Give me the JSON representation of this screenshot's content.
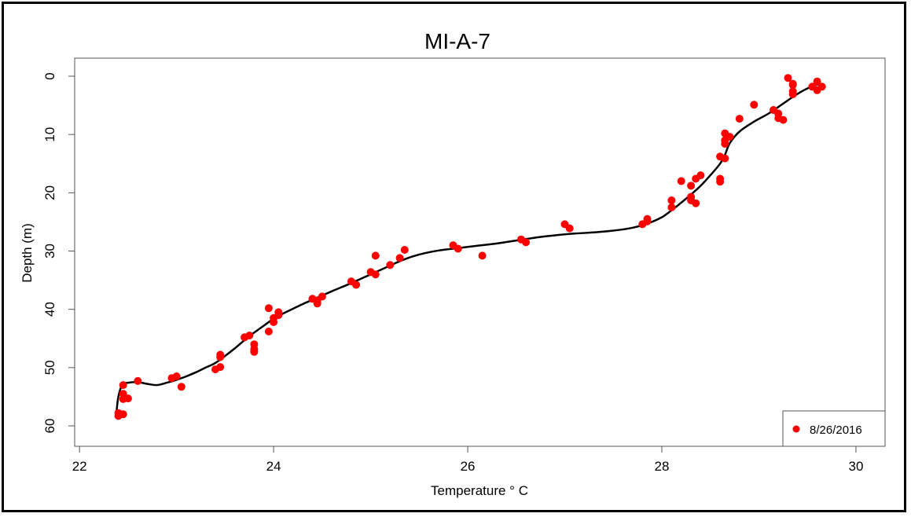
{
  "chart_data": {
    "type": "scatter",
    "title": "MI-A-7",
    "xlabel": "Temperature ° C",
    "ylabel": "Depth (m)",
    "xlim": [
      21.95,
      30.3
    ],
    "ylim": [
      0,
      63
    ],
    "y_axis_inverted": true,
    "x_ticks": [
      22,
      24,
      26,
      28,
      30
    ],
    "y_ticks": [
      0,
      10,
      20,
      30,
      40,
      50,
      60
    ],
    "grid": false,
    "legend": {
      "position": "bottom-right",
      "entries": [
        "8/26/2016"
      ]
    },
    "colors": {
      "points": "#ff0000",
      "smooth_line": "#000000"
    },
    "series": [
      {
        "name": "8/26/2016",
        "style": "points",
        "x": [
          29.3,
          29.35,
          29.35,
          29.6,
          29.65,
          29.6,
          29.55,
          29.35,
          29.35,
          28.95,
          29.15,
          29.2,
          29.2,
          29.25,
          28.8,
          28.65,
          28.7,
          28.65,
          28.65,
          28.6,
          28.65,
          28.4,
          28.35,
          28.2,
          28.3,
          28.6,
          28.6,
          28.3,
          28.3,
          28.35,
          28.1,
          28.1,
          27.85,
          27.8,
          27.85,
          27.0,
          27.05,
          26.55,
          26.6,
          26.15,
          25.85,
          25.9,
          25.35,
          25.3,
          25.2,
          25.05,
          25.0,
          25.05,
          24.8,
          24.85,
          24.5,
          24.4,
          24.45,
          24.45,
          24.05,
          24.0,
          24.0,
          23.95,
          23.95,
          24.05,
          23.75,
          23.7,
          23.8,
          23.8,
          23.8,
          23.45,
          23.45,
          23.4,
          23.45,
          23.0,
          22.95,
          23.05,
          22.6,
          22.5,
          22.45,
          22.45,
          22.45,
          22.4,
          22.4,
          22.45
        ],
        "y": [
          0.3,
          1.3,
          2.6,
          0.9,
          1.8,
          2.4,
          1.8,
          3.1,
          1.5,
          4.9,
          5.8,
          6.4,
          7.2,
          7.5,
          7.3,
          9.8,
          10.4,
          11.0,
          11.6,
          13.8,
          14.1,
          17.0,
          17.6,
          18.0,
          18.8,
          17.6,
          18.1,
          20.7,
          21.3,
          21.8,
          21.3,
          22.5,
          24.5,
          25.4,
          24.9,
          25.4,
          26.1,
          28.0,
          28.5,
          30.8,
          29.0,
          29.6,
          29.8,
          31.2,
          32.4,
          30.8,
          33.6,
          34.0,
          35.2,
          35.8,
          37.8,
          38.2,
          38.5,
          39.0,
          40.5,
          41.5,
          42.2,
          43.8,
          39.8,
          41.0,
          44.5,
          44.8,
          46.0,
          46.8,
          47.3,
          47.8,
          48.2,
          50.3,
          49.9,
          51.5,
          51.8,
          53.3,
          52.3,
          55.3,
          53.0,
          54.5,
          55.4,
          57.8,
          58.3,
          58.0
        ]
      },
      {
        "name": "",
        "style": "smooth-line",
        "x": [
          22.38,
          22.4,
          22.44,
          22.5,
          22.6,
          22.7,
          22.8,
          22.9,
          23.0,
          23.1,
          23.2,
          23.3,
          23.4,
          23.5,
          23.6,
          23.7,
          23.8,
          23.9,
          24.0,
          24.1,
          24.2,
          24.3,
          24.45,
          24.6,
          24.8,
          25.0,
          25.2,
          25.35,
          25.5,
          25.7,
          25.9,
          26.1,
          26.3,
          26.5,
          26.7,
          26.9,
          27.1,
          27.3,
          27.5,
          27.7,
          27.85,
          28.0,
          28.1,
          28.2,
          28.3,
          28.4,
          28.5,
          28.6,
          28.65,
          28.7,
          28.8,
          28.95,
          29.1,
          29.25,
          29.4,
          29.55,
          29.62
        ],
        "y": [
          57.8,
          55.0,
          53.0,
          52.6,
          52.5,
          52.8,
          53.0,
          52.6,
          52.1,
          51.5,
          50.8,
          50.0,
          49.2,
          48.0,
          46.7,
          45.3,
          44.0,
          42.8,
          41.6,
          40.7,
          39.9,
          39.1,
          38.0,
          36.9,
          35.5,
          34.0,
          32.5,
          31.4,
          30.6,
          29.9,
          29.5,
          29.1,
          28.7,
          28.2,
          27.7,
          27.3,
          27.0,
          26.8,
          26.5,
          26.0,
          25.3,
          24.2,
          23.0,
          21.7,
          20.3,
          18.8,
          17.0,
          15.0,
          13.5,
          11.5,
          9.5,
          7.8,
          6.4,
          4.7,
          3.0,
          1.7,
          1.4
        ]
      }
    ]
  }
}
